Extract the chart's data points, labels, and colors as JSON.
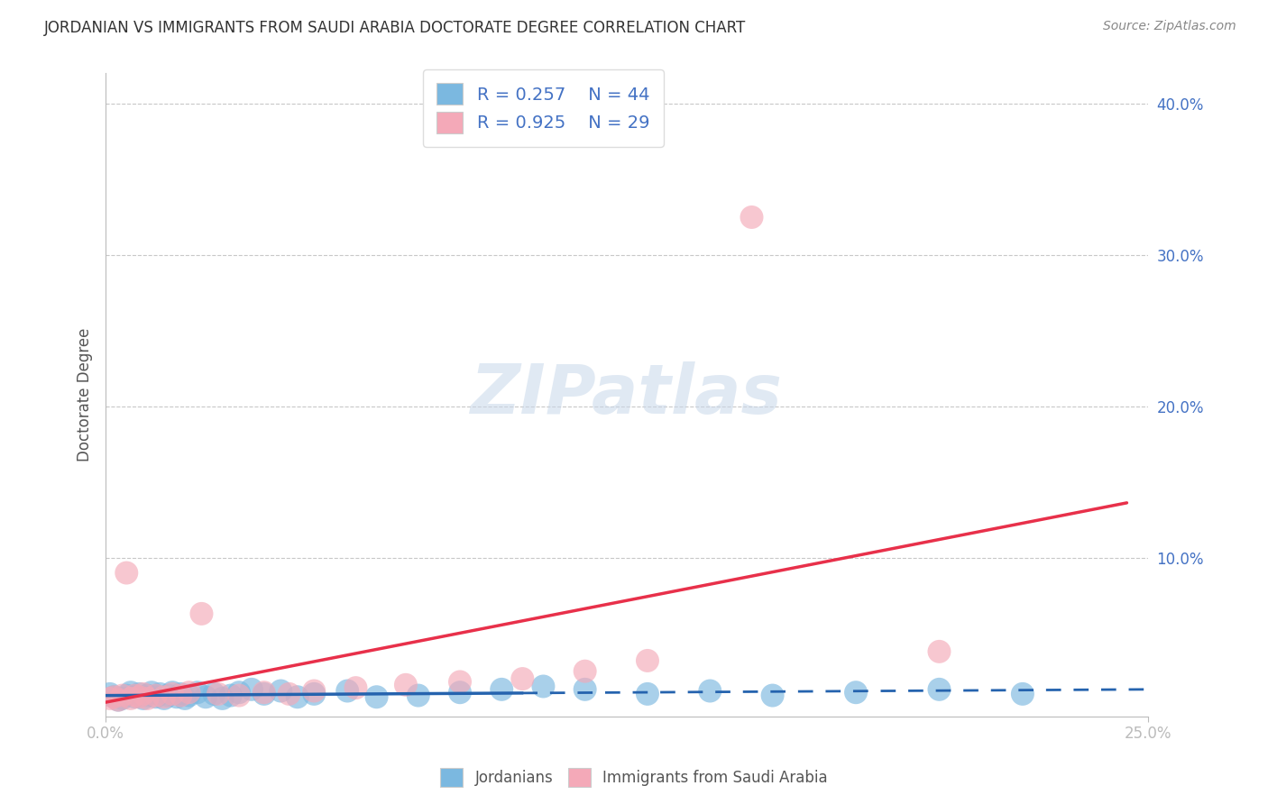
{
  "title": "JORDANIAN VS IMMIGRANTS FROM SAUDI ARABIA DOCTORATE DEGREE CORRELATION CHART",
  "source": "Source: ZipAtlas.com",
  "ylabel": "Doctorate Degree",
  "xlim": [
    0.0,
    0.25
  ],
  "ylim": [
    -0.005,
    0.42
  ],
  "y_ticks_right": [
    0.1,
    0.2,
    0.3,
    0.4
  ],
  "y_tick_labels_right": [
    "10.0%",
    "20.0%",
    "30.0%",
    "40.0%"
  ],
  "legend_R_blue": "0.257",
  "legend_N_blue": "44",
  "legend_R_pink": "0.925",
  "legend_N_pink": "29",
  "watermark": "ZIPatlas",
  "blue_color": "#7bb8e0",
  "pink_color": "#f4a9b8",
  "line_blue_color": "#2563ae",
  "line_pink_color": "#e8304a",
  "background_color": "#ffffff",
  "grid_color": "#c8c8c8",
  "blue_scatter_x": [
    0.001,
    0.002,
    0.003,
    0.004,
    0.005,
    0.006,
    0.007,
    0.008,
    0.009,
    0.01,
    0.011,
    0.012,
    0.013,
    0.014,
    0.015,
    0.016,
    0.017,
    0.018,
    0.019,
    0.02,
    0.022,
    0.024,
    0.026,
    0.028,
    0.03,
    0.032,
    0.035,
    0.038,
    0.042,
    0.046,
    0.05,
    0.058,
    0.065,
    0.075,
    0.085,
    0.095,
    0.105,
    0.115,
    0.13,
    0.145,
    0.16,
    0.18,
    0.2,
    0.22
  ],
  "blue_scatter_y": [
    0.01,
    0.008,
    0.006,
    0.007,
    0.009,
    0.011,
    0.008,
    0.01,
    0.007,
    0.009,
    0.011,
    0.008,
    0.01,
    0.007,
    0.009,
    0.011,
    0.008,
    0.01,
    0.007,
    0.009,
    0.011,
    0.008,
    0.01,
    0.007,
    0.009,
    0.011,
    0.013,
    0.01,
    0.012,
    0.008,
    0.01,
    0.012,
    0.008,
    0.009,
    0.011,
    0.013,
    0.015,
    0.013,
    0.01,
    0.012,
    0.009,
    0.011,
    0.013,
    0.01
  ],
  "pink_scatter_x": [
    0.001,
    0.002,
    0.003,
    0.004,
    0.005,
    0.006,
    0.007,
    0.008,
    0.009,
    0.01,
    0.012,
    0.014,
    0.016,
    0.018,
    0.02,
    0.023,
    0.027,
    0.032,
    0.038,
    0.044,
    0.05,
    0.06,
    0.072,
    0.085,
    0.1,
    0.115,
    0.13,
    0.155,
    0.2
  ],
  "pink_scatter_y": [
    0.007,
    0.008,
    0.006,
    0.009,
    0.09,
    0.007,
    0.009,
    0.008,
    0.01,
    0.007,
    0.009,
    0.008,
    0.01,
    0.009,
    0.011,
    0.063,
    0.01,
    0.009,
    0.011,
    0.01,
    0.012,
    0.014,
    0.016,
    0.018,
    0.02,
    0.025,
    0.032,
    0.325,
    0.038
  ],
  "blue_line_solid_end": 0.1,
  "blue_line_end": 0.25,
  "pink_line_start": 0.0,
  "pink_line_end": 0.245
}
